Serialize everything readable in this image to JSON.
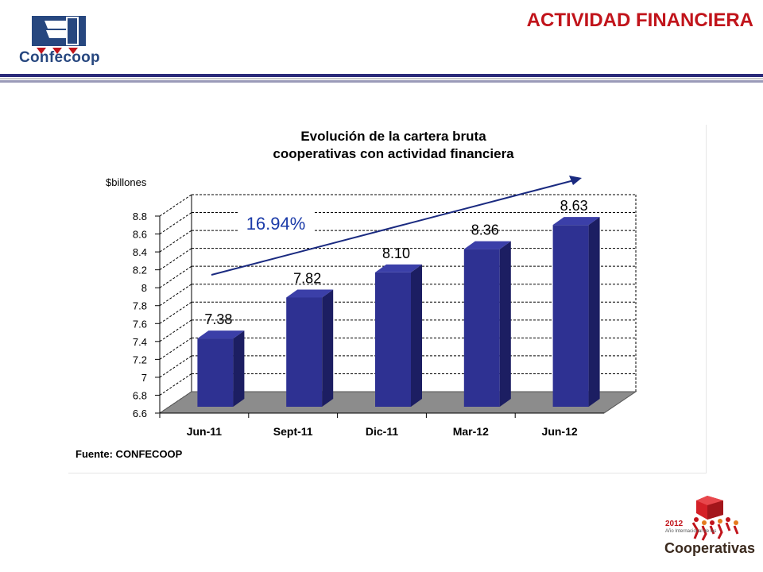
{
  "header": {
    "title": "ACTIVIDAD FINANCIERA",
    "logo_text": "Confecoop"
  },
  "colors": {
    "title_red": "#c1141b",
    "brand_blue": "#27477f",
    "bar_front": "#2e3192",
    "bar_side": "#1c1e62",
    "bar_top": "#3b3fa8",
    "floor": "#8c8c8c",
    "trend_arrow": "#1a2a80",
    "growth_label": "#1a3aa8"
  },
  "chart_data": {
    "type": "bar",
    "title_line1": "Evolución de la cartera bruta",
    "title_line2": "cooperativas con actividad financiera",
    "ylabel": "$billones",
    "categories": [
      "Jun-11",
      "Sept-11",
      "Dic-11",
      "Mar-12",
      "Jun-12"
    ],
    "values": [
      7.38,
      7.82,
      8.1,
      8.36,
      8.63
    ],
    "value_labels": [
      "7.38",
      "7.82",
      "8.10",
      "8.36",
      "8.63"
    ],
    "ylim": [
      6.6,
      8.8
    ],
    "yticks": [
      "6.6",
      "6.8",
      "7",
      "7.2",
      "7.4",
      "7.6",
      "7.8",
      "8",
      "8.2",
      "8.4",
      "8.6",
      "8.8"
    ],
    "annotation": "16.94%",
    "trend": "increasing arrow",
    "grid": true,
    "source": "Fuente: CONFECOOP"
  },
  "footer": {
    "year": "2012",
    "subtitle": "Año Internacional de las",
    "main": "Cooperativas"
  }
}
